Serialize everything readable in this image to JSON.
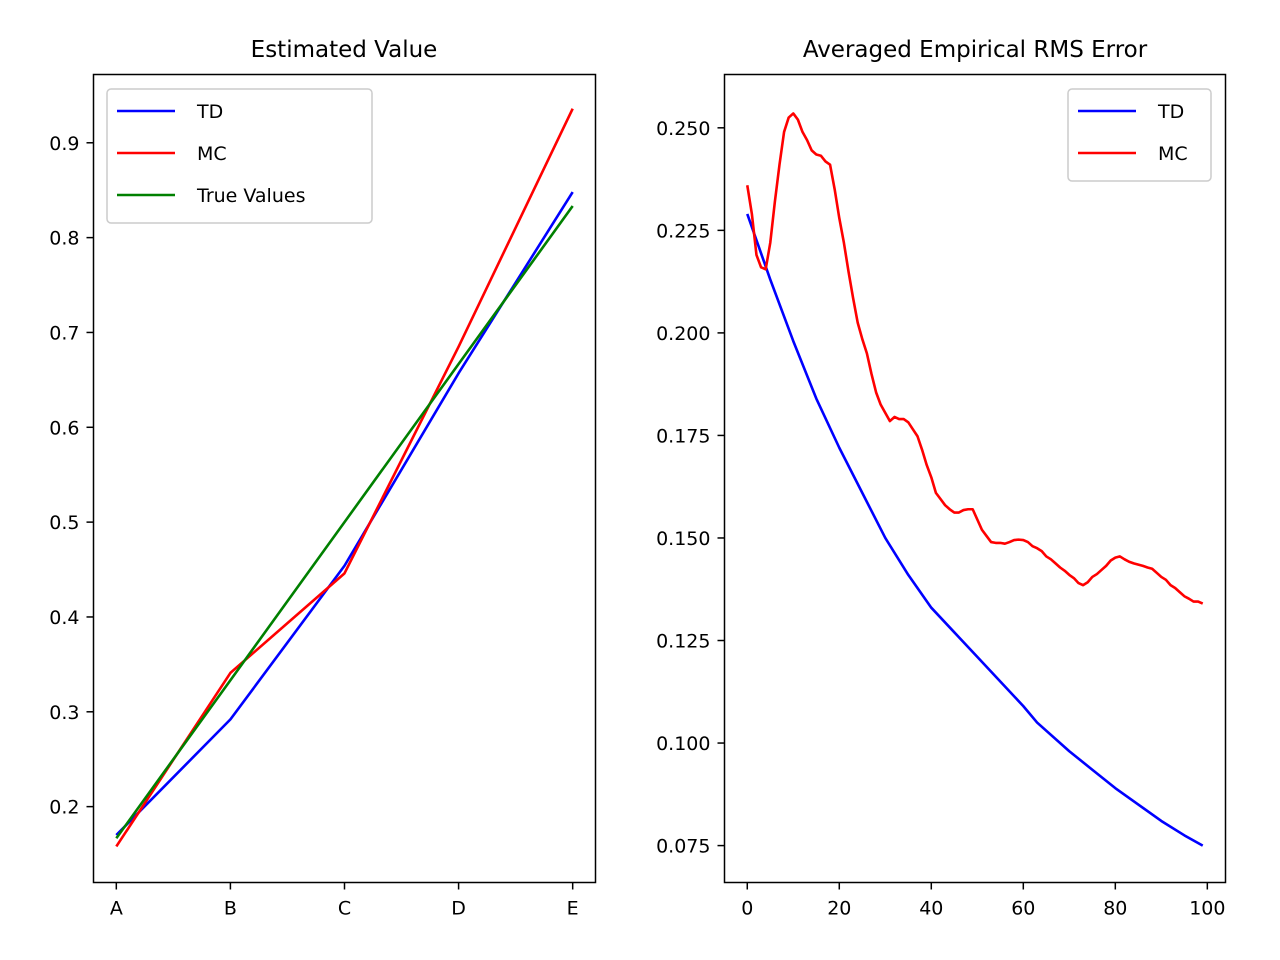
{
  "chart_data": [
    {
      "type": "line",
      "title": "Estimated Value",
      "xlabel": "",
      "ylabel": "",
      "x": [
        "A",
        "B",
        "C",
        "D",
        "E"
      ],
      "ylim": [
        0.12,
        0.972
      ],
      "yticks": [
        0.2,
        0.3,
        0.4,
        0.5,
        0.6,
        0.7,
        0.8,
        0.9
      ],
      "ytick_labels": [
        "0.2",
        "0.3",
        "0.4",
        "0.5",
        "0.6",
        "0.7",
        "0.8",
        "0.9"
      ],
      "legend_position": "upper-left",
      "grid": false,
      "series": [
        {
          "name": "TD",
          "color": "#0000ff",
          "values": [
            0.17,
            0.292,
            0.454,
            0.657,
            0.848
          ]
        },
        {
          "name": "MC",
          "color": "#ff0000",
          "values": [
            0.158,
            0.341,
            0.446,
            0.685,
            0.936
          ]
        },
        {
          "name": "True Values",
          "color": "#008000",
          "values": [
            0.1667,
            0.3333,
            0.5,
            0.6667,
            0.8333
          ]
        }
      ]
    },
    {
      "type": "line",
      "title": "Averaged Empirical RMS Error",
      "xlabel": "",
      "ylabel": "",
      "xlim": [
        -4.95,
        103.95
      ],
      "ylim": [
        0.066,
        0.263
      ],
      "xticks": [
        0,
        20,
        40,
        60,
        80,
        100
      ],
      "xtick_labels": [
        "0",
        "20",
        "40",
        "60",
        "80",
        "100"
      ],
      "yticks": [
        0.075,
        0.1,
        0.125,
        0.15,
        0.175,
        0.2,
        0.225,
        0.25
      ],
      "ytick_labels": [
        "0.075",
        "0.100",
        "0.125",
        "0.150",
        "0.175",
        "0.200",
        "0.225",
        "0.250"
      ],
      "legend_position": "upper-right",
      "grid": false,
      "series": [
        {
          "name": "TD",
          "color": "#0000ff",
          "x": [
            0,
            5,
            10,
            15,
            20,
            25,
            30,
            35,
            40,
            45,
            50,
            55,
            60,
            63,
            70,
            75,
            80,
            85,
            90,
            95,
            99
          ],
          "values": [
            0.229,
            0.213,
            0.198,
            0.184,
            0.172,
            0.161,
            0.15,
            0.141,
            0.133,
            0.127,
            0.121,
            0.115,
            0.109,
            0.105,
            0.098,
            0.0935,
            0.089,
            0.085,
            0.081,
            0.0775,
            0.075
          ]
        },
        {
          "name": "MC",
          "color": "#ff0000",
          "x": [
            0,
            1,
            2,
            3,
            4,
            5,
            6,
            7,
            8,
            9,
            10,
            11,
            12,
            13,
            14,
            15,
            16,
            17,
            18,
            19,
            20,
            21,
            22,
            23,
            24,
            25,
            26,
            27,
            28,
            29,
            30,
            31,
            32,
            33,
            34,
            35,
            36,
            37,
            38,
            39,
            40,
            41,
            42,
            43,
            44,
            45,
            46,
            47,
            48,
            49,
            50,
            51,
            52,
            53,
            54,
            55,
            56,
            57,
            58,
            59,
            60,
            61,
            62,
            63,
            64,
            65,
            66,
            67,
            68,
            69,
            70,
            71,
            72,
            73,
            74,
            75,
            76,
            77,
            78,
            79,
            80,
            81,
            82,
            83,
            84,
            85,
            86,
            87,
            88,
            89,
            90,
            91,
            92,
            93,
            94,
            95,
            96,
            97,
            98,
            99
          ],
          "values": [
            0.236,
            0.229,
            0.219,
            0.216,
            0.2155,
            0.222,
            0.232,
            0.241,
            0.249,
            0.2525,
            0.2535,
            0.252,
            0.249,
            0.247,
            0.2445,
            0.2435,
            0.2432,
            0.2418,
            0.241,
            0.235,
            0.228,
            0.222,
            0.215,
            0.2085,
            0.2025,
            0.1985,
            0.195,
            0.19,
            0.1855,
            0.1825,
            0.1805,
            0.1785,
            0.1795,
            0.179,
            0.179,
            0.1782,
            0.1765,
            0.1748,
            0.1715,
            0.1678,
            0.1648,
            0.161,
            0.1595,
            0.158,
            0.157,
            0.1562,
            0.1562,
            0.1568,
            0.157,
            0.157,
            0.1545,
            0.152,
            0.1505,
            0.149,
            0.1488,
            0.1488,
            0.1486,
            0.149,
            0.1495,
            0.1496,
            0.1495,
            0.149,
            0.148,
            0.1475,
            0.1468,
            0.1455,
            0.1448,
            0.1438,
            0.1428,
            0.142,
            0.141,
            0.1402,
            0.139,
            0.1385,
            0.1392,
            0.1405,
            0.1412,
            0.1422,
            0.1432,
            0.1445,
            0.1452,
            0.1455,
            0.1448,
            0.1442,
            0.1438,
            0.1435,
            0.1432,
            0.1428,
            0.1425,
            0.1415,
            0.1405,
            0.1398,
            0.1385,
            0.1378,
            0.1368,
            0.1358,
            0.1352,
            0.1345,
            0.1345,
            0.134
          ]
        }
      ]
    }
  ]
}
